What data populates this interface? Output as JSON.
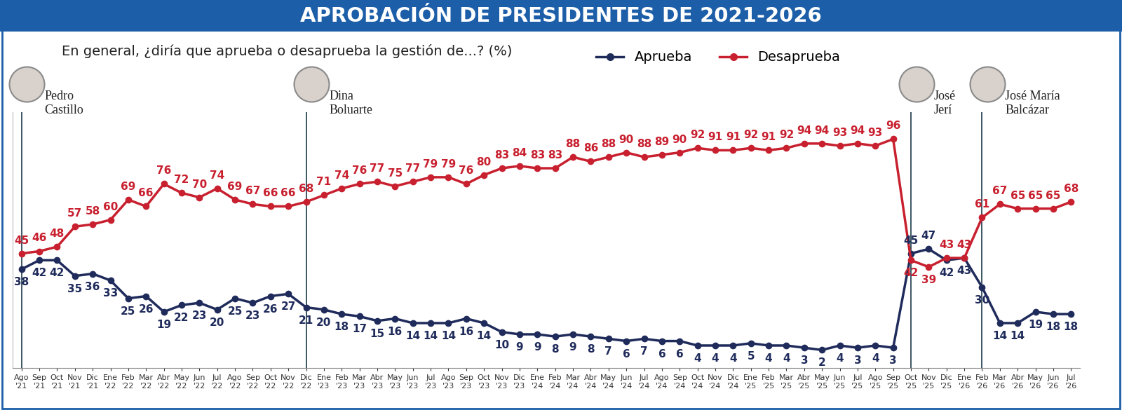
{
  "chart_data": {
    "type": "line",
    "title": "APROBACIÓN DE PRESIDENTES DE 2021-2026",
    "subtitle": "En general, ¿diría que aprueba o desaprueba la gestión de...? (%)",
    "categories": [
      "Ago\n'21",
      "Sep\n'21",
      "Oct\n'21",
      "Nov\n'21",
      "Dic\n'21",
      "Ene\n'22",
      "Feb\n'22",
      "Mar\n'22",
      "Abr\n'22",
      "May\n'22",
      "Jun\n'22",
      "Jul\n'22",
      "Ago\n'22",
      "Sep\n'22",
      "Oct\n'22",
      "Nov\n'22",
      "Dic\n'22",
      "Ene\n'23",
      "Feb\n'23",
      "Mar\n'23",
      "Abr\n'23",
      "May\n'23",
      "Jun\n'23",
      "Jul\n'23",
      "Ago\n'23",
      "Sep\n'23",
      "Oct\n'23",
      "Nov\n'23",
      "Dic\n'23",
      "Ene\n'24",
      "Feb\n'24",
      "Mar\n'24",
      "Abr\n'24",
      "May\n'24",
      "Jun\n'24",
      "Jul\n'24",
      "Ago\n'24",
      "Sep\n'24",
      "Oct\n'24",
      "Nov\n'24",
      "Dic\n'24",
      "Ene\n'25",
      "Feb\n'25",
      "Mar\n'25",
      "Abr\n'25",
      "May\n'25",
      "Jun\n'25",
      "Jul\n'25",
      "Ago\n'25",
      "Sep\n'25",
      "Oct\n'25",
      "Nov\n'25",
      "Dic\n'25",
      "Ene\n'26",
      "Feb\n'26",
      "Mar\n'26",
      "Abr\n'26",
      "May\n'26",
      "Jun\n'26",
      "Jul\n'26"
    ],
    "series": [
      {
        "name": "Aprueba",
        "color": "#1f2b5b",
        "marker": "o",
        "line_style": "solid",
        "values": [
          38,
          42,
          42,
          35,
          36,
          33,
          25,
          26,
          19,
          22,
          23,
          20,
          25,
          23,
          26,
          27,
          21,
          20,
          18,
          17,
          15,
          16,
          14,
          14,
          14,
          16,
          14,
          10,
          9,
          9,
          8,
          9,
          8,
          7,
          6,
          7,
          6,
          6,
          4,
          4,
          4,
          5,
          4,
          4,
          3,
          2,
          4,
          3,
          4,
          3,
          45,
          47,
          42,
          43,
          30,
          14,
          14,
          19,
          18,
          18
        ]
      },
      {
        "name": "Desaprueba",
        "color": "#c8202f",
        "marker": "o",
        "line_style": "solid",
        "values": [
          45,
          46,
          48,
          57,
          58,
          60,
          69,
          66,
          76,
          72,
          70,
          74,
          69,
          67,
          66,
          66,
          68,
          71,
          74,
          76,
          77,
          75,
          77,
          79,
          79,
          76,
          80,
          83,
          84,
          83,
          83,
          88,
          86,
          88,
          90,
          88,
          89,
          90,
          92,
          91,
          91,
          92,
          91,
          92,
          94,
          94,
          93,
          94,
          93,
          96,
          42,
          39,
          43,
          43,
          61,
          67,
          65,
          65,
          65,
          68
        ]
      }
    ],
    "annotations": [
      {
        "text": "Pedro\nCastillo",
        "x": "Ago\n'21"
      },
      {
        "text": "Dina\nBoluarte",
        "x": "Dic\n'22"
      },
      {
        "text": "José\nJerí",
        "x": "Oct\n'25"
      },
      {
        "text": "José María\nBalcázar",
        "x": "Feb\n'26"
      }
    ],
    "ylim": [
      -6,
      108
    ],
    "yticks": [],
    "grid": false,
    "legend": "upper right",
    "data_labels": true,
    "tick_labels": "x"
  }
}
